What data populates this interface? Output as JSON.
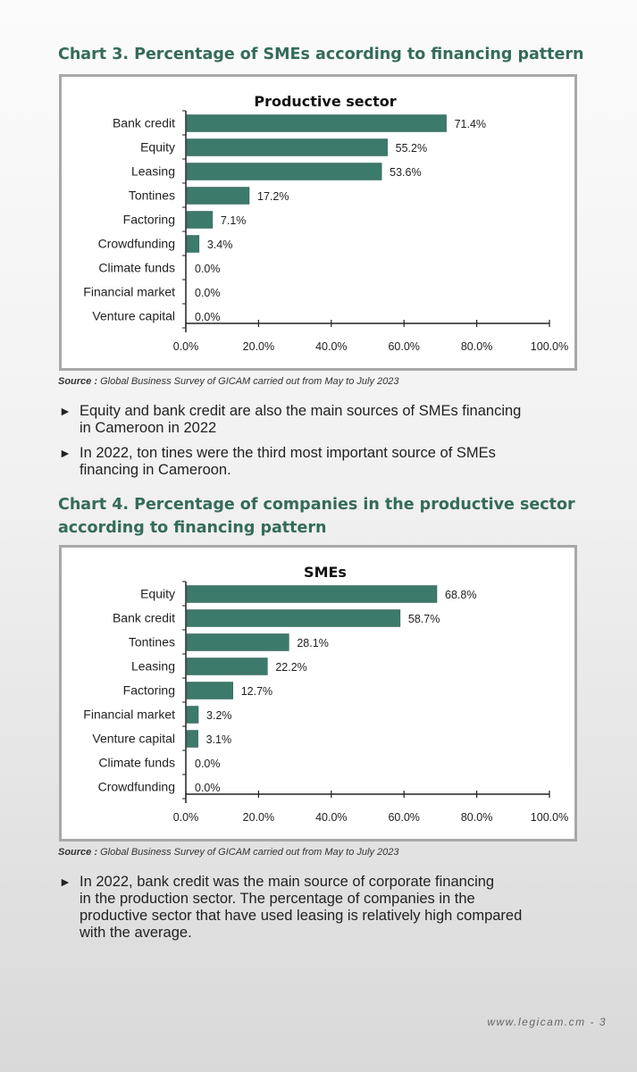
{
  "charts": [
    {
      "heading": "Chart 3. Percentage of SMEs according to financing pattern",
      "source_label": "Source :",
      "source_text": "Global Business Survey of GICAM carried out from May to July 2023"
    },
    {
      "heading_line1": "Chart 4. Percentage of companies in the productive sector",
      "heading_line2": "according to financing pattern",
      "source_label": "Source :",
      "source_text": "Global Business Survey of GICAM carried out from May to July 2023"
    }
  ],
  "bullets": {
    "b1_line1": "Equity and bank credit are also the main sources of SMEs financing",
    "b1_line2": "in Cameroon in 2022",
    "b2_line1": "In 2022, ton tines were the third most important source of SMEs",
    "b2_line2": "financing in Cameroon.",
    "b3_line1": "In 2022, bank credit was the main source of corporate financing",
    "b3_line2": "in the production sector. The percentage of companies in the",
    "b3_line3": "productive sector that have used leasing is relatively high compared",
    "b3_line4": "with the average."
  },
  "footer": "www.legicam.cm - 3",
  "colors": {
    "bar": "#3c7a6b",
    "heading": "#356b5b"
  },
  "chart_data": [
    {
      "type": "bar",
      "orientation": "horizontal",
      "title": "Productive sector",
      "categories": [
        "Bank credit",
        "Equity",
        "Leasing",
        "Tontines",
        "Factoring",
        "Crowdfunding",
        "Climate funds",
        "Financial market",
        "Venture capital"
      ],
      "values": [
        71.4,
        55.2,
        53.6,
        17.2,
        7.1,
        3.4,
        0.0,
        0.0,
        0.0
      ],
      "value_labels": [
        "71.4%",
        "55.2%",
        "53.6%",
        "17.2%",
        "7.1%",
        "3.4%",
        "0.0%",
        "0.0%",
        "0.0%"
      ],
      "xlim": [
        0,
        100
      ],
      "xticks": [
        0,
        20,
        40,
        60,
        80,
        100
      ],
      "xtick_labels": [
        "0.0%",
        "20.0%",
        "40.0%",
        "60.0%",
        "80.0%",
        "100.0%"
      ],
      "grid": false
    },
    {
      "type": "bar",
      "orientation": "horizontal",
      "title": "SMEs",
      "categories": [
        "Equity",
        "Bank credit",
        "Tontines",
        "Leasing",
        "Factoring",
        "Financial market",
        "Venture capital",
        "Climate funds",
        "Crowdfunding"
      ],
      "values": [
        68.8,
        58.7,
        28.1,
        22.2,
        12.7,
        3.2,
        3.1,
        0.0,
        0.0
      ],
      "value_labels": [
        "68.8%",
        "58.7%",
        "28.1%",
        "22.2%",
        "12.7%",
        "3.2%",
        "3.1%",
        "0.0%",
        "0.0%"
      ],
      "xlim": [
        0,
        100
      ],
      "xticks": [
        0,
        20,
        40,
        60,
        80,
        100
      ],
      "xtick_labels": [
        "0.0%",
        "20.0%",
        "40.0%",
        "60.0%",
        "80.0%",
        "100.0%"
      ],
      "grid": false
    }
  ]
}
